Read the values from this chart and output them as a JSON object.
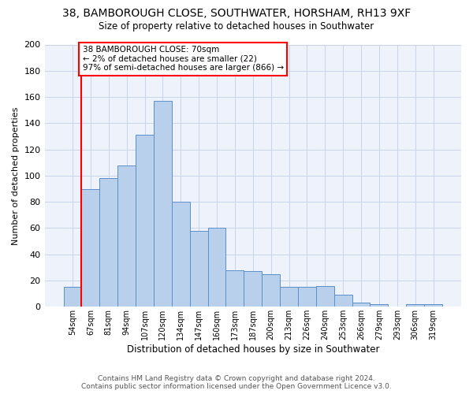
{
  "title": "38, BAMBOROUGH CLOSE, SOUTHWATER, HORSHAM, RH13 9XF",
  "subtitle": "Size of property relative to detached houses in Southwater",
  "xlabel": "Distribution of detached houses by size in Southwater",
  "ylabel": "Number of detached properties",
  "categories": [
    "54sqm",
    "67sqm",
    "81sqm",
    "94sqm",
    "107sqm",
    "120sqm",
    "134sqm",
    "147sqm",
    "160sqm",
    "173sqm",
    "187sqm",
    "200sqm",
    "213sqm",
    "226sqm",
    "240sqm",
    "253sqm",
    "266sqm",
    "279sqm",
    "293sqm",
    "306sqm",
    "319sqm"
  ],
  "values": [
    15,
    90,
    98,
    108,
    131,
    157,
    80,
    58,
    60,
    28,
    27,
    25,
    15,
    15,
    16,
    9,
    3,
    2,
    0,
    2,
    2
  ],
  "bar_color": "#b8d0ec",
  "bar_edge_color": "#5b8fc9",
  "annotation_line1": "38 BAMBOROUGH CLOSE: 70sqm",
  "annotation_line2": "← 2% of detached houses are smaller (22)",
  "annotation_line3": "97% of semi-detached houses are larger (866) →",
  "annotation_box_color": "white",
  "annotation_box_edge_color": "red",
  "marker_color": "red",
  "ylim_max": 200,
  "yticks": [
    0,
    20,
    40,
    60,
    80,
    100,
    120,
    140,
    160,
    180,
    200
  ],
  "footer1": "Contains HM Land Registry data © Crown copyright and database right 2024.",
  "footer2": "Contains public sector information licensed under the Open Government Licence v3.0.",
  "bg_color": "#eef2fb",
  "grid_color": "#c8d4e8"
}
